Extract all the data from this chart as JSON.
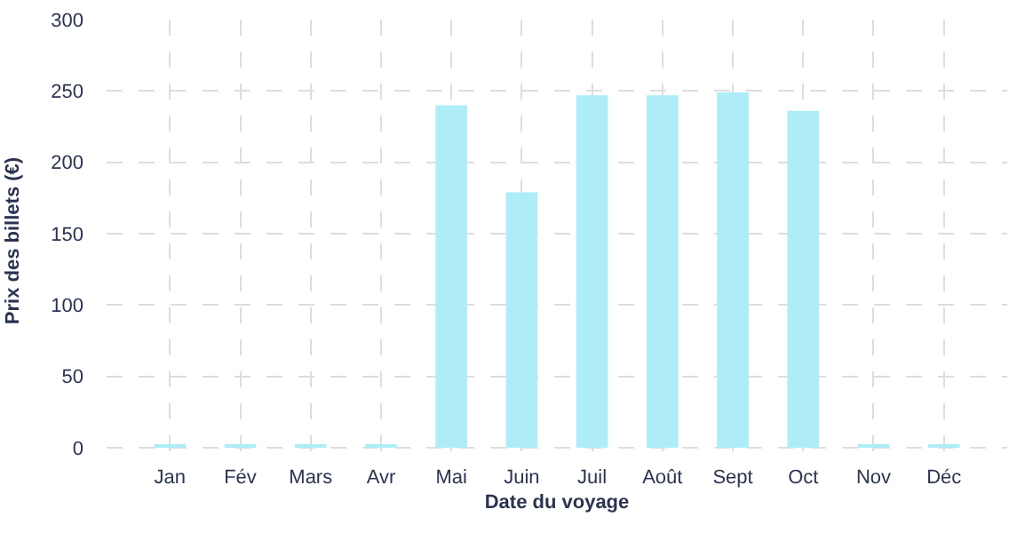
{
  "chart_data": {
    "type": "bar",
    "xlabel": "Date du voyage",
    "ylabel": "Prix des billets (€)",
    "categories": [
      "Jan",
      "Fév",
      "Mars",
      "Avr",
      "Mai",
      "Juin",
      "Juil",
      "Août",
      "Sept",
      "Oct",
      "Nov",
      "Déc"
    ],
    "values": [
      2,
      2,
      2,
      2,
      240,
      179,
      247,
      247,
      249,
      236,
      2,
      2
    ],
    "color": "#aeedf7",
    "ylim": [
      -10,
      300
    ],
    "yticks": [
      0,
      50,
      100,
      150,
      200,
      250,
      300
    ],
    "grid": true
  }
}
